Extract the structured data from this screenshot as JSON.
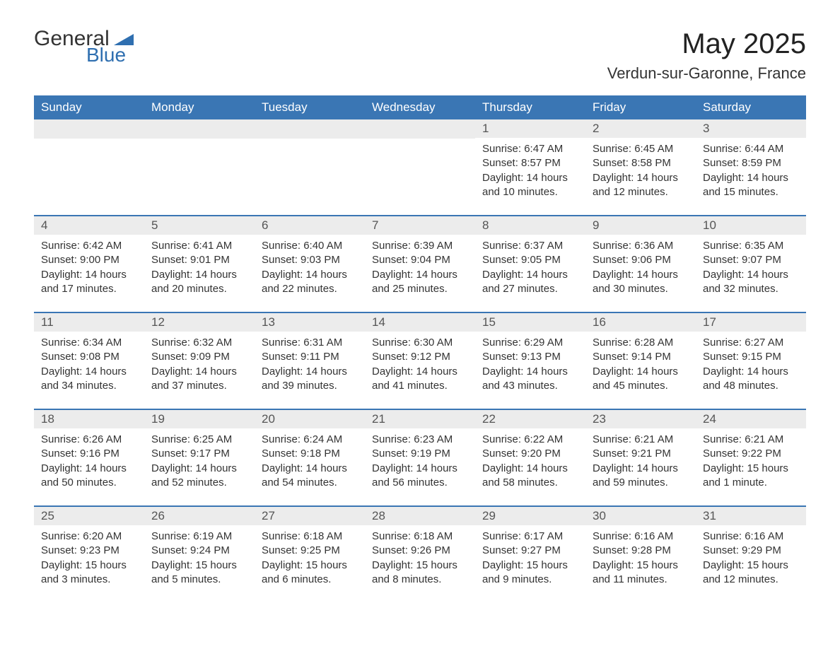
{
  "logo": {
    "general": "General",
    "blue": "Blue",
    "triangle_color": "#2f6fb0"
  },
  "title": "May 2025",
  "location": "Verdun-sur-Garonne, France",
  "colors": {
    "header_bg": "#3a76b4",
    "header_text": "#ffffff",
    "daynum_bg": "#ececec",
    "body_text": "#333333",
    "border": "#3a76b4"
  },
  "day_names": [
    "Sunday",
    "Monday",
    "Tuesday",
    "Wednesday",
    "Thursday",
    "Friday",
    "Saturday"
  ],
  "weeks": [
    [
      null,
      null,
      null,
      null,
      {
        "d": "1",
        "sr": "Sunrise: 6:47 AM",
        "ss": "Sunset: 8:57 PM",
        "dl": "Daylight: 14 hours and 10 minutes."
      },
      {
        "d": "2",
        "sr": "Sunrise: 6:45 AM",
        "ss": "Sunset: 8:58 PM",
        "dl": "Daylight: 14 hours and 12 minutes."
      },
      {
        "d": "3",
        "sr": "Sunrise: 6:44 AM",
        "ss": "Sunset: 8:59 PM",
        "dl": "Daylight: 14 hours and 15 minutes."
      }
    ],
    [
      {
        "d": "4",
        "sr": "Sunrise: 6:42 AM",
        "ss": "Sunset: 9:00 PM",
        "dl": "Daylight: 14 hours and 17 minutes."
      },
      {
        "d": "5",
        "sr": "Sunrise: 6:41 AM",
        "ss": "Sunset: 9:01 PM",
        "dl": "Daylight: 14 hours and 20 minutes."
      },
      {
        "d": "6",
        "sr": "Sunrise: 6:40 AM",
        "ss": "Sunset: 9:03 PM",
        "dl": "Daylight: 14 hours and 22 minutes."
      },
      {
        "d": "7",
        "sr": "Sunrise: 6:39 AM",
        "ss": "Sunset: 9:04 PM",
        "dl": "Daylight: 14 hours and 25 minutes."
      },
      {
        "d": "8",
        "sr": "Sunrise: 6:37 AM",
        "ss": "Sunset: 9:05 PM",
        "dl": "Daylight: 14 hours and 27 minutes."
      },
      {
        "d": "9",
        "sr": "Sunrise: 6:36 AM",
        "ss": "Sunset: 9:06 PM",
        "dl": "Daylight: 14 hours and 30 minutes."
      },
      {
        "d": "10",
        "sr": "Sunrise: 6:35 AM",
        "ss": "Sunset: 9:07 PM",
        "dl": "Daylight: 14 hours and 32 minutes."
      }
    ],
    [
      {
        "d": "11",
        "sr": "Sunrise: 6:34 AM",
        "ss": "Sunset: 9:08 PM",
        "dl": "Daylight: 14 hours and 34 minutes."
      },
      {
        "d": "12",
        "sr": "Sunrise: 6:32 AM",
        "ss": "Sunset: 9:09 PM",
        "dl": "Daylight: 14 hours and 37 minutes."
      },
      {
        "d": "13",
        "sr": "Sunrise: 6:31 AM",
        "ss": "Sunset: 9:11 PM",
        "dl": "Daylight: 14 hours and 39 minutes."
      },
      {
        "d": "14",
        "sr": "Sunrise: 6:30 AM",
        "ss": "Sunset: 9:12 PM",
        "dl": "Daylight: 14 hours and 41 minutes."
      },
      {
        "d": "15",
        "sr": "Sunrise: 6:29 AM",
        "ss": "Sunset: 9:13 PM",
        "dl": "Daylight: 14 hours and 43 minutes."
      },
      {
        "d": "16",
        "sr": "Sunrise: 6:28 AM",
        "ss": "Sunset: 9:14 PM",
        "dl": "Daylight: 14 hours and 45 minutes."
      },
      {
        "d": "17",
        "sr": "Sunrise: 6:27 AM",
        "ss": "Sunset: 9:15 PM",
        "dl": "Daylight: 14 hours and 48 minutes."
      }
    ],
    [
      {
        "d": "18",
        "sr": "Sunrise: 6:26 AM",
        "ss": "Sunset: 9:16 PM",
        "dl": "Daylight: 14 hours and 50 minutes."
      },
      {
        "d": "19",
        "sr": "Sunrise: 6:25 AM",
        "ss": "Sunset: 9:17 PM",
        "dl": "Daylight: 14 hours and 52 minutes."
      },
      {
        "d": "20",
        "sr": "Sunrise: 6:24 AM",
        "ss": "Sunset: 9:18 PM",
        "dl": "Daylight: 14 hours and 54 minutes."
      },
      {
        "d": "21",
        "sr": "Sunrise: 6:23 AM",
        "ss": "Sunset: 9:19 PM",
        "dl": "Daylight: 14 hours and 56 minutes."
      },
      {
        "d": "22",
        "sr": "Sunrise: 6:22 AM",
        "ss": "Sunset: 9:20 PM",
        "dl": "Daylight: 14 hours and 58 minutes."
      },
      {
        "d": "23",
        "sr": "Sunrise: 6:21 AM",
        "ss": "Sunset: 9:21 PM",
        "dl": "Daylight: 14 hours and 59 minutes."
      },
      {
        "d": "24",
        "sr": "Sunrise: 6:21 AM",
        "ss": "Sunset: 9:22 PM",
        "dl": "Daylight: 15 hours and 1 minute."
      }
    ],
    [
      {
        "d": "25",
        "sr": "Sunrise: 6:20 AM",
        "ss": "Sunset: 9:23 PM",
        "dl": "Daylight: 15 hours and 3 minutes."
      },
      {
        "d": "26",
        "sr": "Sunrise: 6:19 AM",
        "ss": "Sunset: 9:24 PM",
        "dl": "Daylight: 15 hours and 5 minutes."
      },
      {
        "d": "27",
        "sr": "Sunrise: 6:18 AM",
        "ss": "Sunset: 9:25 PM",
        "dl": "Daylight: 15 hours and 6 minutes."
      },
      {
        "d": "28",
        "sr": "Sunrise: 6:18 AM",
        "ss": "Sunset: 9:26 PM",
        "dl": "Daylight: 15 hours and 8 minutes."
      },
      {
        "d": "29",
        "sr": "Sunrise: 6:17 AM",
        "ss": "Sunset: 9:27 PM",
        "dl": "Daylight: 15 hours and 9 minutes."
      },
      {
        "d": "30",
        "sr": "Sunrise: 6:16 AM",
        "ss": "Sunset: 9:28 PM",
        "dl": "Daylight: 15 hours and 11 minutes."
      },
      {
        "d": "31",
        "sr": "Sunrise: 6:16 AM",
        "ss": "Sunset: 9:29 PM",
        "dl": "Daylight: 15 hours and 12 minutes."
      }
    ]
  ]
}
